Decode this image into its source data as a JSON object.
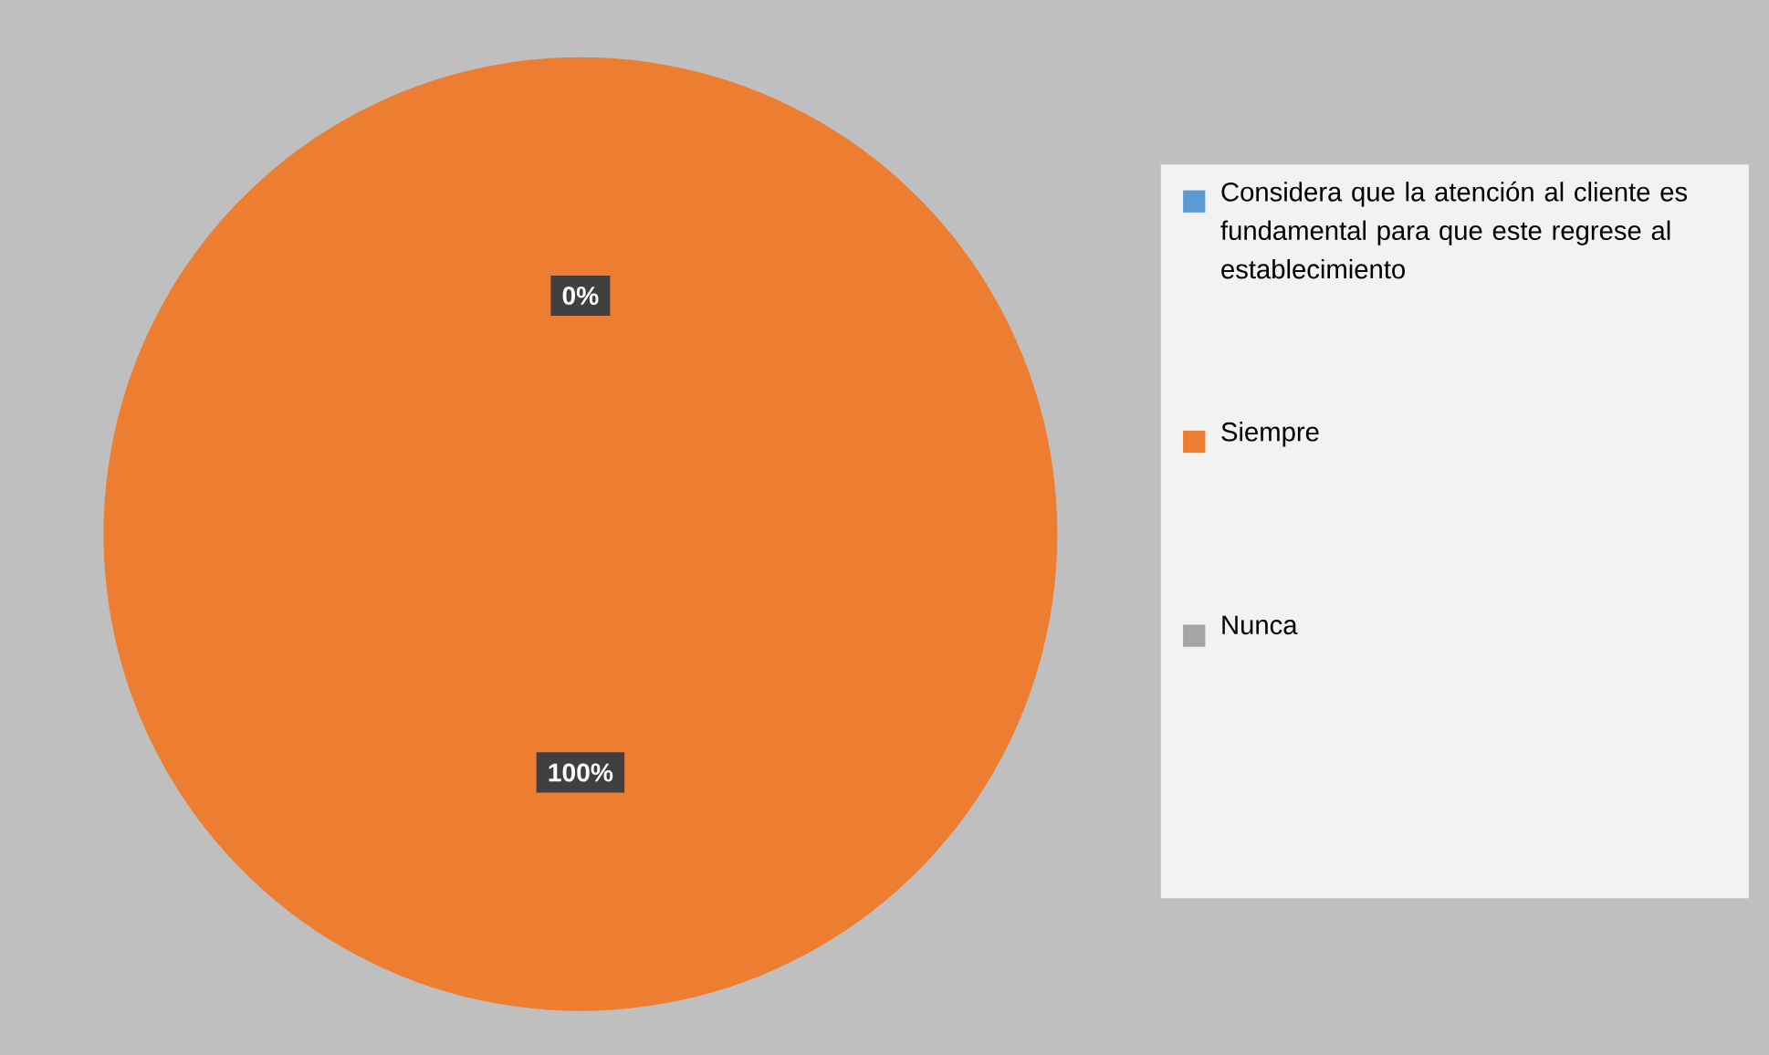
{
  "chart_data": {
    "type": "pie",
    "categories": [
      "Considera que la atención al cliente es fundamental para que este regrese al establecimiento",
      "Siempre",
      "Nunca"
    ],
    "values": [
      0,
      100,
      0
    ],
    "colors": [
      "#5b9bd5",
      "#ed7d31",
      "#a5a5a5"
    ],
    "value_labels": [
      null,
      "100%",
      "0%"
    ],
    "legend": "right"
  }
}
